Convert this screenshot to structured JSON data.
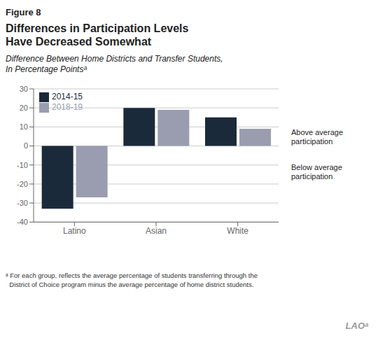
{
  "chart_data": {
    "type": "bar",
    "figure_label": "Figure 8",
    "title": "Differences in Participation Levels\nHave Decreased Somewhat",
    "subtitle": "Difference Between Home Districts and Transfer Students,\nIn Percentage Pointsᵃ",
    "categories": [
      "Latino",
      "Asian",
      "White"
    ],
    "series": [
      {
        "name": "2014-15",
        "color": "#1b2a3a",
        "values": [
          -33,
          20,
          15
        ]
      },
      {
        "name": "2018-19",
        "color": "#9a9db0",
        "values": [
          -27,
          19,
          9
        ]
      }
    ],
    "ylim": [
      -40,
      30
    ],
    "yticks": [
      -40,
      -30,
      -20,
      -10,
      0,
      10,
      20,
      30
    ],
    "grid": true,
    "legend": "upper left",
    "annotations": [
      "Above average\nparticipation",
      "Below average\nparticipation"
    ],
    "footnote": "ᵃ For each group, reflects the average percentage of students transferring through the\n  District of Choice program minus the average percentage of home district students.",
    "watermark": "LAOᵃ"
  }
}
